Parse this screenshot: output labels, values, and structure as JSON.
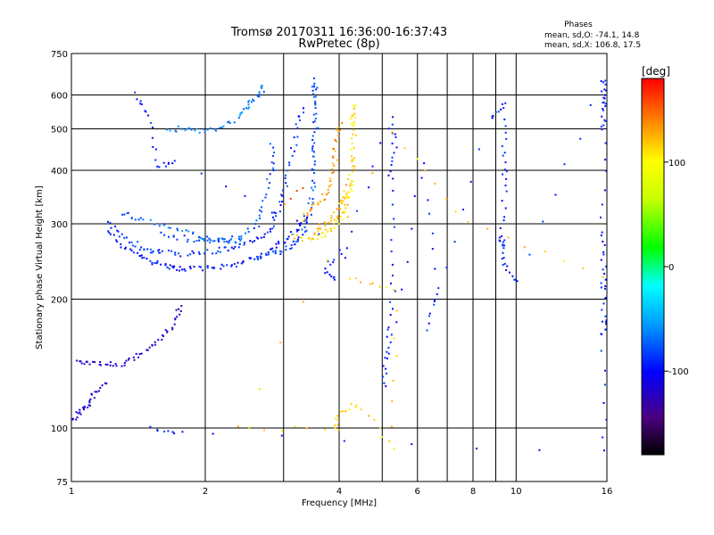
{
  "chart_data": {
    "type": "scatter",
    "title": "Tromsø 20170311 16:36:00-16:37:43",
    "subtitle": "RwPretec (8p)",
    "xlabel": "Frequency [MHz]",
    "ylabel": "Stationary phase Virtual Height [km]",
    "x_scale": "log",
    "y_scale": "log",
    "xlim": [
      1,
      16
    ],
    "ylim": [
      75,
      750
    ],
    "x_ticks": [
      1,
      2,
      4,
      6,
      8,
      10,
      16
    ],
    "x_ticks_minor_lines": [
      3,
      5,
      7,
      9
    ],
    "y_ticks": [
      75,
      100,
      200,
      300,
      400,
      500,
      600,
      750
    ],
    "grid": true,
    "stats": {
      "header": "Phases",
      "o_line": "mean, sd,O: -74.1, 14.8",
      "x_line": "mean, sd,X: 106.8, 17.5"
    },
    "colorbar": {
      "label": "[deg]",
      "range": [
        -180,
        180
      ],
      "ticks": [
        100,
        0,
        -100
      ],
      "tick_labels": [
        "100",
        "0",
        "-100"
      ]
    },
    "traces": [
      {
        "name": "",
        "phase": -112,
        "points": [
          [
            1.0,
            105
          ],
          [
            1.04,
            110
          ],
          [
            1.08,
            113
          ],
          [
            1.12,
            120
          ],
          [
            1.18,
            128
          ]
        ]
      },
      {
        "name": "",
        "phase": -118,
        "points": [
          [
            1.02,
            145
          ],
          [
            1.1,
            143
          ],
          [
            1.2,
            142
          ],
          [
            1.3,
            140
          ],
          [
            1.4,
            148
          ],
          [
            1.5,
            155
          ],
          [
            1.6,
            165
          ],
          [
            1.7,
            178
          ],
          [
            1.75,
            195
          ]
        ]
      },
      {
        "name": "",
        "phase": -95,
        "points": [
          [
            1.2,
            290
          ],
          [
            1.3,
            268
          ],
          [
            1.4,
            255
          ],
          [
            1.5,
            246
          ],
          [
            1.6,
            241
          ],
          [
            1.7,
            238
          ],
          [
            1.8,
            236
          ],
          [
            2.0,
            237
          ],
          [
            2.2,
            240
          ],
          [
            2.4,
            245
          ],
          [
            2.6,
            252
          ],
          [
            2.8,
            262
          ],
          [
            3.0,
            275
          ],
          [
            3.2,
            292
          ],
          [
            3.3,
            310
          ]
        ]
      },
      {
        "name": "",
        "phase": -88,
        "points": [
          [
            1.2,
            305
          ],
          [
            1.3,
            282
          ],
          [
            1.4,
            268
          ],
          [
            1.5,
            260
          ],
          [
            1.6,
            258
          ],
          [
            1.8,
            256
          ],
          [
            2.0,
            258
          ],
          [
            2.2,
            262
          ],
          [
            2.4,
            268
          ],
          [
            2.6,
            278
          ],
          [
            2.8,
            292
          ],
          [
            2.9,
            320
          ],
          [
            3.0,
            360
          ],
          [
            3.1,
            420
          ],
          [
            3.2,
            500
          ],
          [
            3.3,
            560
          ]
        ]
      },
      {
        "name": "",
        "phase": -78,
        "points": [
          [
            1.6,
            285
          ],
          [
            1.8,
            278
          ],
          [
            2.0,
            276
          ],
          [
            2.2,
            275
          ],
          [
            2.4,
            280
          ],
          [
            2.6,
            300
          ],
          [
            2.7,
            340
          ],
          [
            2.8,
            400
          ],
          [
            2.82,
            460
          ]
        ]
      },
      {
        "name": "",
        "phase": -70,
        "points": [
          [
            1.3,
            320
          ],
          [
            1.4,
            310
          ],
          [
            1.6,
            300
          ],
          [
            1.8,
            290
          ],
          [
            2.0,
            280
          ],
          [
            2.2,
            275
          ],
          [
            2.4,
            272
          ]
        ]
      },
      {
        "name": "",
        "phase": -80,
        "points": [
          [
            2.6,
            250
          ],
          [
            2.8,
            256
          ],
          [
            3.0,
            262
          ],
          [
            3.2,
            272
          ],
          [
            3.3,
            285
          ],
          [
            3.4,
            310
          ],
          [
            3.45,
            350
          ],
          [
            3.5,
            400
          ],
          [
            3.5,
            450
          ],
          [
            3.52,
            500
          ],
          [
            3.5,
            560
          ],
          [
            3.5,
            620
          ],
          [
            3.52,
            650
          ]
        ]
      },
      {
        "name": "",
        "phase": -65,
        "points": [
          [
            1.65,
            500
          ],
          [
            1.8,
            505
          ],
          [
            2.0,
            495
          ],
          [
            2.2,
            510
          ],
          [
            2.4,
            540
          ],
          [
            2.5,
            570
          ],
          [
            2.6,
            600
          ],
          [
            2.7,
            630
          ]
        ]
      },
      {
        "name": "",
        "phase": 110,
        "points": [
          [
            3.1,
            280
          ],
          [
            3.4,
            278
          ],
          [
            3.6,
            283
          ],
          [
            3.8,
            292
          ],
          [
            4.0,
            305
          ],
          [
            4.1,
            330
          ],
          [
            4.2,
            360
          ],
          [
            4.25,
            400
          ],
          [
            4.3,
            440
          ],
          [
            4.3,
            500
          ],
          [
            4.28,
            540
          ],
          [
            4.3,
            570
          ]
        ]
      },
      {
        "name": "",
        "phase": 120,
        "points": [
          [
            3.5,
            290
          ],
          [
            3.7,
            300
          ],
          [
            3.9,
            315
          ],
          [
            4.0,
            335
          ],
          [
            4.1,
            350
          ],
          [
            4.2,
            380
          ]
        ]
      },
      {
        "name": "",
        "phase": 130,
        "points": [
          [
            3.3,
            310
          ],
          [
            3.5,
            330
          ],
          [
            3.7,
            350
          ],
          [
            3.8,
            380
          ],
          [
            3.9,
            420
          ],
          [
            3.9,
            470
          ],
          [
            4.0,
            520
          ]
        ]
      },
      {
        "name": "",
        "phase": 150,
        "points": [
          [
            3.0,
            335
          ],
          [
            3.1,
            345
          ],
          [
            3.2,
            360
          ],
          [
            3.3,
            365
          ]
        ]
      },
      {
        "name": "",
        "phase": -95,
        "points": [
          [
            1.37,
            605
          ],
          [
            1.5,
            540
          ],
          [
            1.55,
            410
          ],
          [
            1.7,
            425
          ],
          [
            4.1,
            265
          ],
          [
            3.7,
            235
          ],
          [
            3.9,
            225
          ],
          [
            5.2,
            530
          ],
          [
            5.3,
            455
          ],
          [
            5.2,
            380
          ],
          [
            5.3,
            240
          ],
          [
            5.2,
            175
          ],
          [
            5.1,
            150
          ],
          [
            5.0,
            124
          ],
          [
            6.1,
            420
          ],
          [
            6.6,
            215
          ],
          [
            6.3,
            170
          ],
          [
            8.7,
            530
          ],
          [
            9.4,
            580
          ],
          [
            9.3,
            440
          ],
          [
            9.4,
            370
          ],
          [
            9.2,
            280
          ],
          [
            9.3,
            270
          ],
          [
            9.3,
            240
          ],
          [
            10.0,
            220
          ],
          [
            15.6,
            660
          ],
          [
            15.7,
            600
          ],
          [
            15.6,
            560
          ],
          [
            15.7,
            500
          ],
          [
            15.6,
            290
          ],
          [
            15.7,
            240
          ],
          [
            15.6,
            215
          ],
          [
            15.7,
            180
          ],
          [
            15.6,
            165
          ],
          [
            15.7,
            88
          ],
          [
            1.5,
            100
          ],
          [
            1.75,
            98
          ]
        ]
      },
      {
        "name": "",
        "phase": 115,
        "points": [
          [
            4.2,
            225
          ],
          [
            5.3,
            210
          ],
          [
            5.3,
            90
          ],
          [
            4.4,
            115
          ],
          [
            3.9,
            108
          ],
          [
            3.95,
            100
          ],
          [
            2.35,
            100
          ],
          [
            5.3,
            490
          ],
          [
            7.7,
            305
          ],
          [
            15.7,
            225
          ]
        ]
      }
    ]
  }
}
